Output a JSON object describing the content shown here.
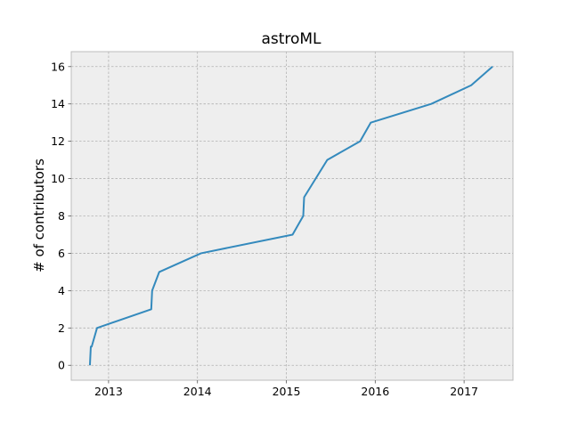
{
  "chart_data": {
    "type": "line",
    "title": "astroML",
    "xlabel": "",
    "ylabel": "# of contributors",
    "xlim": [
      2012.58,
      2017.55
    ],
    "ylim": [
      -0.8,
      16.8
    ],
    "xticks": [
      2013,
      2014,
      2015,
      2016,
      2017
    ],
    "yticks": [
      0,
      2,
      4,
      6,
      8,
      10,
      12,
      14,
      16
    ],
    "grid": true,
    "series": [
      {
        "x": [
          2012.79,
          2012.8,
          2012.81,
          2012.87,
          2013.48,
          2013.49,
          2013.57,
          2014.04,
          2015.07,
          2015.19,
          2015.2,
          2015.46,
          2015.83,
          2015.95,
          2016.63,
          2017.08,
          2017.32
        ],
        "y": [
          0,
          1,
          1,
          2,
          3,
          4,
          5,
          6,
          7,
          8,
          9,
          11,
          12,
          13,
          14,
          15,
          16
        ],
        "color": "#348abd"
      }
    ],
    "style": {
      "axes_bg": "#eeeeee",
      "grid_color": "#b2b2b2",
      "frame_color": "#bcbcbc"
    }
  }
}
